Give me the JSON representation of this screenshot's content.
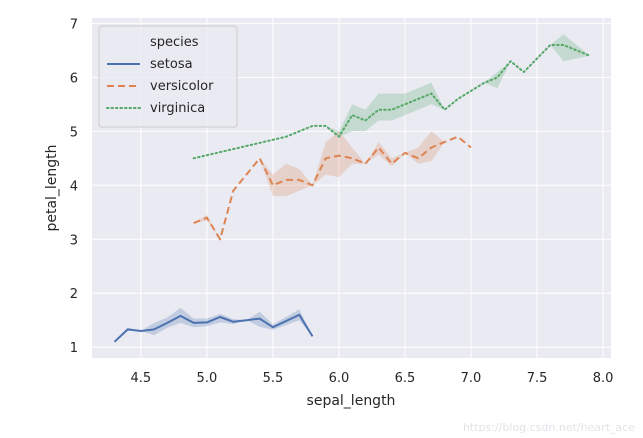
{
  "chart_data": {
    "type": "line",
    "xlabel": "sepal_length",
    "ylabel": "petal_length",
    "xlim": [
      4.13,
      8.06
    ],
    "ylim": [
      0.8,
      7.1
    ],
    "xticks": [
      4.5,
      5.0,
      5.5,
      6.0,
      6.5,
      7.0,
      7.5,
      8.0
    ],
    "xtick_labels": [
      "4.5",
      "5.0",
      "5.5",
      "6.0",
      "6.5",
      "7.0",
      "7.5",
      "8.0"
    ],
    "yticks": [
      1,
      2,
      3,
      4,
      5,
      6,
      7
    ],
    "ytick_labels": [
      "1",
      "2",
      "3",
      "4",
      "5",
      "6",
      "7"
    ],
    "grid": true,
    "legend_title": "species",
    "legend_position": "top-left",
    "series": [
      {
        "name": "setosa",
        "color": "#4c72b0",
        "dash": "solid",
        "x": [
          4.3,
          4.4,
          4.5,
          4.6,
          4.7,
          4.8,
          4.9,
          5.0,
          5.1,
          5.2,
          5.3,
          5.4,
          5.5,
          5.7,
          5.8
        ],
        "y": [
          1.1,
          1.33,
          1.3,
          1.33,
          1.45,
          1.58,
          1.45,
          1.46,
          1.56,
          1.47,
          1.5,
          1.53,
          1.37,
          1.6,
          1.2
        ],
        "ci_low": [
          1.1,
          1.3,
          1.3,
          1.22,
          1.36,
          1.45,
          1.37,
          1.39,
          1.46,
          1.43,
          1.5,
          1.38,
          1.32,
          1.5,
          1.2
        ],
        "ci_high": [
          1.1,
          1.36,
          1.3,
          1.45,
          1.55,
          1.73,
          1.53,
          1.53,
          1.62,
          1.52,
          1.5,
          1.66,
          1.42,
          1.7,
          1.2
        ]
      },
      {
        "name": "versicolor",
        "color": "#dd8452",
        "dash": "dashed",
        "x": [
          4.9,
          5.0,
          5.1,
          5.2,
          5.4,
          5.5,
          5.6,
          5.7,
          5.8,
          5.9,
          6.0,
          6.1,
          6.2,
          6.3,
          6.4,
          6.5,
          6.6,
          6.7,
          6.8,
          6.9,
          7.0
        ],
        "y": [
          3.3,
          3.4,
          3.0,
          3.9,
          4.5,
          4.0,
          4.1,
          4.1,
          4.0,
          4.5,
          4.55,
          4.5,
          4.4,
          4.7,
          4.4,
          4.6,
          4.5,
          4.7,
          4.8,
          4.9,
          4.7
        ],
        "ci_low": [
          3.3,
          3.35,
          3.0,
          3.9,
          4.5,
          3.8,
          3.8,
          3.9,
          4.0,
          4.2,
          4.15,
          4.4,
          4.4,
          4.57,
          4.35,
          4.6,
          4.4,
          4.45,
          4.8,
          4.9,
          4.7
        ],
        "ci_high": [
          3.3,
          3.45,
          3.0,
          3.9,
          4.5,
          4.2,
          4.4,
          4.3,
          4.0,
          4.8,
          5.0,
          4.7,
          4.4,
          4.8,
          4.5,
          4.6,
          4.7,
          5.0,
          4.8,
          4.9,
          4.7
        ]
      },
      {
        "name": "virginica",
        "color": "#55a868",
        "dash": "dotted",
        "x": [
          4.9,
          5.6,
          5.7,
          5.8,
          5.9,
          6.0,
          6.1,
          6.2,
          6.3,
          6.4,
          6.5,
          6.7,
          6.8,
          6.9,
          7.1,
          7.2,
          7.3,
          7.4,
          7.6,
          7.7,
          7.9
        ],
        "y": [
          4.5,
          4.9,
          5.0,
          5.1,
          5.1,
          4.9,
          5.3,
          5.2,
          5.4,
          5.4,
          5.5,
          5.7,
          5.4,
          5.6,
          5.9,
          6.0,
          6.3,
          6.1,
          6.6,
          6.6,
          6.4
        ],
        "ci_low": [
          4.5,
          4.9,
          5.0,
          5.1,
          5.1,
          4.9,
          5.0,
          5.0,
          5.2,
          5.2,
          5.3,
          5.5,
          5.4,
          5.6,
          5.9,
          5.8,
          6.3,
          6.1,
          6.6,
          6.3,
          6.4
        ],
        "ci_high": [
          4.5,
          4.9,
          5.0,
          5.1,
          5.1,
          5.0,
          5.5,
          5.4,
          5.7,
          5.7,
          5.7,
          5.9,
          5.4,
          5.6,
          5.9,
          6.1,
          6.3,
          6.1,
          6.6,
          6.8,
          6.4
        ]
      }
    ]
  },
  "watermark": "https://blog.csdn.net/heart_ace"
}
